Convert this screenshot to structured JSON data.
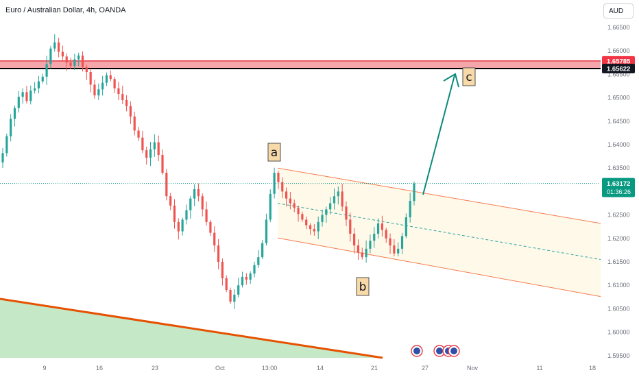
{
  "header": {
    "symbol_title": "Euro / Australian Dollar, 4h, OANDA",
    "currency": "AUD"
  },
  "colors": {
    "up": "#26a69a",
    "down": "#ef5350",
    "resistance_fill": "#f4a6ab",
    "channel": "#f57c4d",
    "support_fill": "#c5e8c7",
    "support_line": "#e65100",
    "arrow": "#0a8a7a",
    "price_badge": "#089981",
    "label_bg": "#f8d9a8"
  },
  "chart_data": {
    "type": "candlestick",
    "instrument": "Euro / Australian Dollar",
    "timeframe": "4h",
    "source": "OANDA",
    "y_ticks": [
      "1.66500",
      "1.66000",
      "1.65500",
      "1.65000",
      "1.64500",
      "1.64000",
      "1.63500",
      "1.63000",
      "1.62500",
      "1.62000",
      "1.61500",
      "1.61000",
      "1.60500",
      "1.60000",
      "1.59500"
    ],
    "x_ticks": [
      "9",
      "16",
      "23",
      "Oct",
      "13:00",
      "14",
      "21",
      "27",
      "Nov",
      "11",
      "18"
    ],
    "ylim": [
      1.5945,
      1.6685
    ],
    "levels": [
      {
        "label": "1.65785",
        "value": 1.65785,
        "kind": "resistance-zone-top"
      },
      {
        "label": "1.65622",
        "value": 1.65622,
        "kind": "horizontal-line"
      }
    ],
    "last_price": {
      "label": "1.63172",
      "value": 1.63172,
      "countdown": "01:36:26"
    },
    "wave_labels": [
      {
        "text": "a",
        "approx_value": 1.6355
      },
      {
        "text": "b",
        "approx_value": 1.609
      },
      {
        "text": "c",
        "approx_value": 1.6556
      }
    ],
    "channel": {
      "upper": [
        1.635,
        1.6232
      ],
      "lower": [
        1.6201,
        1.6076
      ],
      "mid": [
        1.6275,
        1.6155
      ]
    },
    "closes": [
      1.6382,
      1.6418,
      1.6455,
      1.6478,
      1.6502,
      1.6512,
      1.6493,
      1.6515,
      1.652,
      1.6535,
      1.6545,
      1.6572,
      1.6605,
      1.6618,
      1.6598,
      1.6588,
      1.6575,
      1.6568,
      1.6582,
      1.659,
      1.6565,
      1.6555,
      1.6528,
      1.6505,
      1.6518,
      1.6532,
      1.6548,
      1.654,
      1.652,
      1.6508,
      1.6495,
      1.6482,
      1.646,
      1.643,
      1.6415,
      1.6388,
      1.6372,
      1.639,
      1.6405,
      1.6378,
      1.634,
      1.629,
      1.627,
      1.6235,
      1.6215,
      1.624,
      1.626,
      1.6285,
      1.6305,
      1.629,
      1.6262,
      1.6235,
      1.6212,
      1.6185,
      1.615,
      1.6115,
      1.609,
      1.6065,
      1.608,
      1.61,
      1.6118,
      1.6112,
      1.6125,
      1.6143,
      1.616,
      1.619,
      1.624,
      1.6295,
      1.634,
      1.632,
      1.63,
      1.6285,
      1.6275,
      1.6265,
      1.6252,
      1.624,
      1.6228,
      1.622,
      1.6215,
      1.6235,
      1.625,
      1.6262,
      1.6275,
      1.629,
      1.63,
      1.6268,
      1.624,
      1.621,
      1.6185,
      1.617,
      1.616,
      1.6178,
      1.6195,
      1.621,
      1.6232,
      1.6218,
      1.62,
      1.6185,
      1.6168,
      1.6178,
      1.6205,
      1.6245,
      1.628,
      1.6317
    ]
  }
}
